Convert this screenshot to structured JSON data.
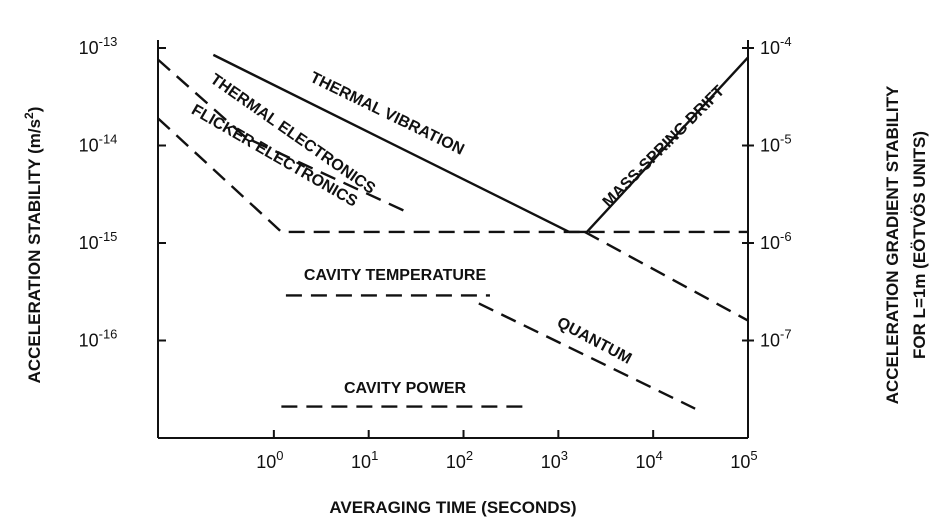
{
  "chart_data": {
    "type": "line",
    "xlabel": "AVERAGING TIME (SECONDS)",
    "ylabel": [
      "ACCELERATION STABILITY (m/s",
      "2",
      ")"
    ],
    "y2label": [
      "ACCELERATION GRADIENT STABILITY",
      "FOR L=1m  (EÖTVÖS UNITS)"
    ],
    "xscale": "log",
    "yscale": "log",
    "xlim": [
      0.06,
      100000
    ],
    "ylim": [
      1e-17,
      1e-13
    ],
    "y2lim": [
      1e-08,
      0.0001
    ],
    "xticks": [
      {
        "value": 1,
        "label": "10",
        "exp": "0"
      },
      {
        "value": 10,
        "label": "10",
        "exp": "1"
      },
      {
        "value": 100,
        "label": "10",
        "exp": "2"
      },
      {
        "value": 1000,
        "label": "10",
        "exp": "3"
      },
      {
        "value": 10000,
        "label": "10",
        "exp": "4"
      },
      {
        "value": 100000,
        "label": "10",
        "exp": "5"
      }
    ],
    "yticks": [
      {
        "value": 1e-13,
        "label": "10",
        "exp": "-13"
      },
      {
        "value": 1e-14,
        "label": "10",
        "exp": "-14"
      },
      {
        "value": 1e-15,
        "label": "10",
        "exp": "-15"
      },
      {
        "value": 1e-16,
        "label": "10",
        "exp": "-16"
      }
    ],
    "y2ticks": [
      {
        "value": 0.0001,
        "label": "10",
        "exp": "-4"
      },
      {
        "value": 1e-05,
        "label": "10",
        "exp": "-5"
      },
      {
        "value": 1e-06,
        "label": "10",
        "exp": "-6"
      },
      {
        "value": 1e-07,
        "label": "10",
        "exp": "-7"
      }
    ],
    "series": [
      {
        "name": "THERMAL VIBRATION",
        "color": "#111",
        "dash": false,
        "x": [
          0.23,
          1300
        ],
        "values": [
          8.5e-14,
          1.3e-15
        ]
      },
      {
        "name": "MASS-SPRING DRIFT",
        "color": "#111",
        "dash": false,
        "x": [
          1300,
          2000,
          100000
        ],
        "values": [
          1.3e-15,
          1.3e-15,
          8e-14
        ]
      },
      {
        "name": "THERMAL ELECTRONICS",
        "color": "#111",
        "dash": true,
        "x": [
          0.06,
          0.51,
          27.6
        ],
        "values": [
          7.6e-14,
          1.2e-14,
          2e-15
        ]
      },
      {
        "name": "FLICKER ELECTRONICS",
        "color": "#111",
        "dash": true,
        "x": [
          0.06,
          1.2,
          100000
        ],
        "values": [
          1.9e-14,
          1.3e-15,
          1.3e-15
        ]
      },
      {
        "name": "QUANTUM",
        "color": "#111",
        "dash": true,
        "x": [
          145,
          27700
        ],
        "values": [
          2.4e-16,
          2e-17
        ]
      },
      {
        "color": "#111",
        "dash": true,
        "x": [
          1900,
          100000
        ],
        "values": [
          1.3e-15,
          1.6e-16
        ]
      },
      {
        "name": "CAVITY TEMPERATURE",
        "color": "#111",
        "dash": true,
        "x": [
          1.34,
          190
        ],
        "values": [
          2.9e-16,
          2.9e-16
        ]
      },
      {
        "name": "CAVITY POWER",
        "color": "#111",
        "dash": true,
        "x": [
          1.2,
          500
        ],
        "values": [
          2.1e-17,
          2.1e-17
        ]
      }
    ]
  }
}
